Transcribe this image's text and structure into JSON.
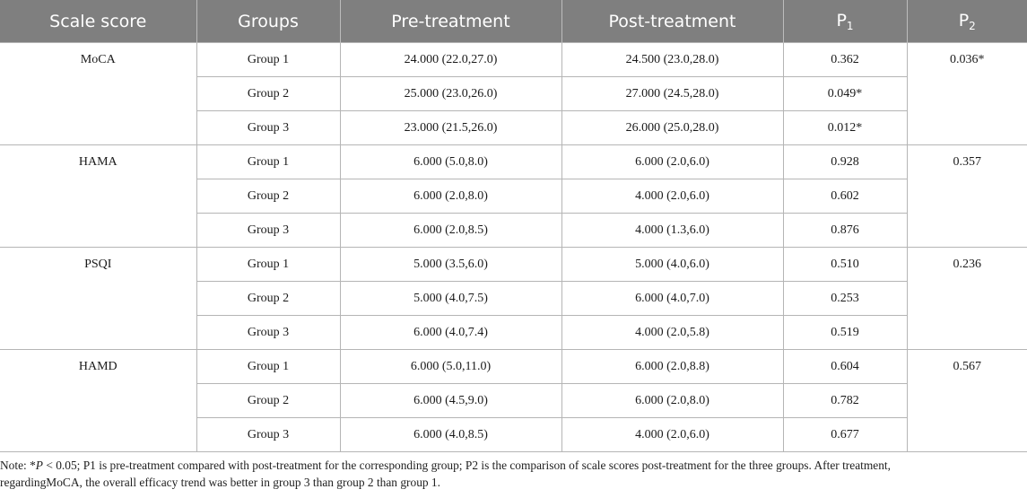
{
  "columns": {
    "scale_score": "Scale score",
    "groups": "Groups",
    "pre_treatment": "Pre-treatment",
    "post_treatment": "Post-treatment",
    "p1_base": "P",
    "p1_sub": "1",
    "p2_base": "P",
    "p2_sub": "2"
  },
  "blocks": [
    {
      "scale": "MoCA",
      "p2": "0.036*",
      "rows": [
        {
          "group": "Group 1",
          "pre": "24.000 (22.0,27.0)",
          "post": "24.500 (23.0,28.0)",
          "p1": "0.362"
        },
        {
          "group": "Group 2",
          "pre": "25.000 (23.0,26.0)",
          "post": "27.000 (24.5,28.0)",
          "p1": "0.049*"
        },
        {
          "group": "Group 3",
          "pre": "23.000 (21.5,26.0)",
          "post": "26.000 (25.0,28.0)",
          "p1": "0.012*"
        }
      ]
    },
    {
      "scale": "HAMA",
      "p2": "0.357",
      "rows": [
        {
          "group": "Group 1",
          "pre": "6.000 (5.0,8.0)",
          "post": "6.000 (2.0,6.0)",
          "p1": "0.928"
        },
        {
          "group": "Group 2",
          "pre": "6.000 (2.0,8.0)",
          "post": "4.000 (2.0,6.0)",
          "p1": "0.602"
        },
        {
          "group": "Group 3",
          "pre": "6.000 (2.0,8.5)",
          "post": "4.000 (1.3,6.0)",
          "p1": "0.876"
        }
      ]
    },
    {
      "scale": "PSQI",
      "p2": "0.236",
      "rows": [
        {
          "group": "Group 1",
          "pre": "5.000 (3.5,6.0)",
          "post": "5.000 (4.0,6.0)",
          "p1": "0.510"
        },
        {
          "group": "Group 2",
          "pre": "5.000 (4.0,7.5)",
          "post": "6.000 (4.0,7.0)",
          "p1": "0.253"
        },
        {
          "group": "Group 3",
          "pre": "6.000 (4.0,7.4)",
          "post": "4.000 (2.0,5.8)",
          "p1": "0.519"
        }
      ]
    },
    {
      "scale": "HAMD",
      "p2": "0.567",
      "rows": [
        {
          "group": "Group 1",
          "pre": "6.000 (5.0,11.0)",
          "post": "6.000 (2.0,8.8)",
          "p1": "0.604"
        },
        {
          "group": "Group 2",
          "pre": "6.000 (4.5,9.0)",
          "post": "6.000 (2.0,8.0)",
          "p1": "0.782"
        },
        {
          "group": "Group 3",
          "pre": "6.000 (4.0,8.5)",
          "post": "4.000 (2.0,6.0)",
          "p1": "0.677"
        }
      ]
    }
  ],
  "note": {
    "prefix": "Note: *",
    "p_symbol": "P",
    "rest_line1": " < 0.05; P1 is pre-treatment compared with post-treatment for the corresponding group; P2 is the comparison of scale scores post-treatment for the three groups. After treatment,",
    "line2": "regardingMoCA, the overall efficacy trend was better in group 3 than group 2 than group 1."
  }
}
